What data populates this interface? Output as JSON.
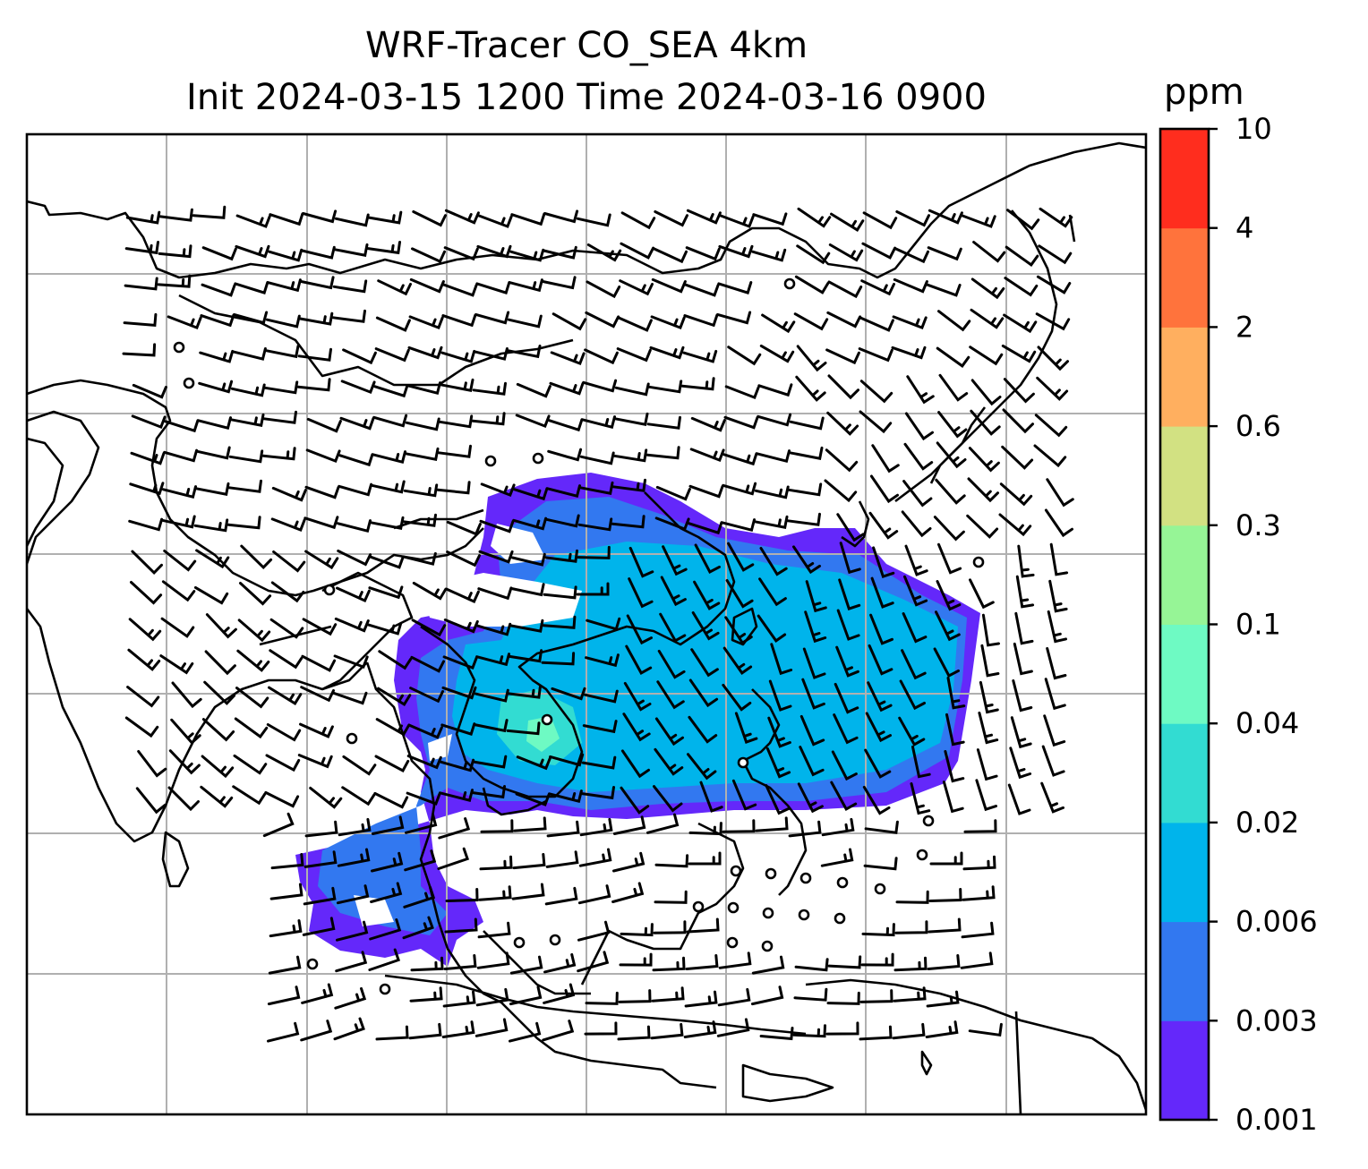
{
  "title_line1": "WRF-Tracer CO_SEA 4km",
  "title_line2": "Init 2024-03-15 1200 Time 2024-03-16 0900",
  "colorbar": {
    "unit": "ppm",
    "levels": [
      "0.001",
      "0.003",
      "0.006",
      "0.02",
      "0.04",
      "0.1",
      "0.3",
      "0.6",
      "2",
      "4",
      "10"
    ],
    "colors": [
      "#6428fa",
      "#3278f0",
      "#00b4eb",
      "#32dcd2",
      "#6efac3",
      "#96f596",
      "#d2e182",
      "#ffaf5f",
      "#ff733c",
      "#ff2d1e"
    ]
  },
  "map": {
    "gridlines": true,
    "overlays": [
      "coastlines",
      "country-borders",
      "wind-barbs",
      "co-tracer-concentration-fill"
    ]
  }
}
